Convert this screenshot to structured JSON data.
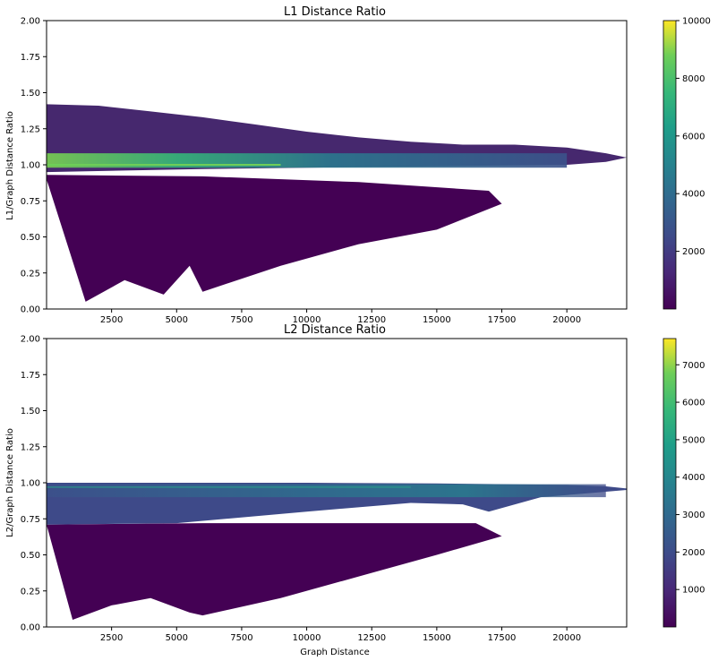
{
  "chart_data": [
    {
      "type": "heatmap",
      "title": "L1 Distance Ratio",
      "xlabel": "",
      "ylabel": "L1/Graph Distance Ratio",
      "xlim": [
        0,
        22300
      ],
      "ylim": [
        0,
        2
      ],
      "x_ticks": [
        2500,
        5000,
        7500,
        10000,
        12500,
        15000,
        17500,
        20000
      ],
      "x_tick_labels": [
        "2500",
        "5000",
        "7500",
        "10000",
        "12500",
        "15000",
        "17500",
        "20000"
      ],
      "y_ticks": [
        0,
        0.25,
        0.5,
        0.75,
        1.0,
        1.25,
        1.5,
        1.75,
        2.0
      ],
      "y_tick_labels": [
        "0.00",
        "0.25",
        "0.50",
        "0.75",
        "1.00",
        "1.25",
        "1.50",
        "1.75",
        "2.00"
      ],
      "colorbar": {
        "min": 0,
        "max": 10000,
        "ticks": [
          2000,
          4000,
          6000,
          8000,
          10000
        ],
        "tick_labels": [
          "2000",
          "4000",
          "6000",
          "8000",
          "10000"
        ]
      },
      "colormap": "viridis",
      "grid": false,
      "density_regions": {
        "upper_envelope": [
          [
            0,
            1.42
          ],
          [
            2000,
            1.41
          ],
          [
            4000,
            1.37
          ],
          [
            6000,
            1.33
          ],
          [
            8000,
            1.28
          ],
          [
            10000,
            1.23
          ],
          [
            12000,
            1.19
          ],
          [
            14000,
            1.16
          ],
          [
            16000,
            1.14
          ],
          [
            18000,
            1.14
          ],
          [
            20000,
            1.12
          ],
          [
            21500,
            1.08
          ],
          [
            22300,
            1.05
          ]
        ],
        "main_lower": [
          [
            0,
            0.95
          ],
          [
            3000,
            0.96
          ],
          [
            6000,
            0.97
          ],
          [
            10000,
            0.98
          ],
          [
            15000,
            0.99
          ],
          [
            20000,
            1.0
          ],
          [
            21500,
            1.02
          ],
          [
            22300,
            1.05
          ]
        ],
        "peak_line_y": 1.0,
        "lower_spray": [
          [
            0,
            0.9
          ],
          [
            1500,
            0.05
          ],
          [
            3000,
            0.2
          ],
          [
            4500,
            0.1
          ],
          [
            5500,
            0.3
          ],
          [
            6000,
            0.12
          ],
          [
            9000,
            0.3
          ],
          [
            12000,
            0.45
          ],
          [
            15000,
            0.55
          ],
          [
            17500,
            0.73
          ],
          [
            17000,
            0.82
          ],
          [
            12000,
            0.88
          ],
          [
            6000,
            0.92
          ],
          [
            0,
            0.93
          ]
        ]
      }
    },
    {
      "type": "heatmap",
      "title": "L2 Distance Ratio",
      "xlabel": "Graph Distance",
      "ylabel": "L2/Graph Distance Ratio",
      "xlim": [
        0,
        22300
      ],
      "ylim": [
        0,
        2
      ],
      "x_ticks": [
        2500,
        5000,
        7500,
        10000,
        12500,
        15000,
        17500,
        20000
      ],
      "x_tick_labels": [
        "2500",
        "5000",
        "7500",
        "10000",
        "12500",
        "15000",
        "17500",
        "20000"
      ],
      "y_ticks": [
        0,
        0.25,
        0.5,
        0.75,
        1.0,
        1.25,
        1.5,
        1.75,
        2.0
      ],
      "y_tick_labels": [
        "0.00",
        "0.25",
        "0.50",
        "0.75",
        "1.00",
        "1.25",
        "1.50",
        "1.75",
        "2.00"
      ],
      "colorbar": {
        "min": 0,
        "max": 7700,
        "ticks": [
          1000,
          2000,
          3000,
          4000,
          5000,
          6000,
          7000
        ],
        "tick_labels": [
          "1000",
          "2000",
          "3000",
          "4000",
          "5000",
          "6000",
          "7000"
        ]
      },
      "colormap": "viridis",
      "grid": false,
      "density_regions": {
        "upper_envelope": [
          [
            0,
            1.0
          ],
          [
            10000,
            1.0
          ],
          [
            15000,
            0.995
          ],
          [
            20000,
            0.985
          ],
          [
            21500,
            0.975
          ],
          [
            22300,
            0.96
          ]
        ],
        "main_lower": [
          [
            0,
            0.71
          ],
          [
            5000,
            0.72
          ],
          [
            10000,
            0.8
          ],
          [
            14000,
            0.86
          ],
          [
            16000,
            0.85
          ],
          [
            17000,
            0.8
          ],
          [
            19000,
            0.9
          ],
          [
            21000,
            0.93
          ],
          [
            22300,
            0.95
          ]
        ],
        "peak_line_y": 0.97,
        "lower_spray": [
          [
            0,
            0.71
          ],
          [
            1000,
            0.05
          ],
          [
            2500,
            0.15
          ],
          [
            4000,
            0.2
          ],
          [
            5500,
            0.1
          ],
          [
            6000,
            0.08
          ],
          [
            9000,
            0.2
          ],
          [
            12000,
            0.35
          ],
          [
            15000,
            0.5
          ],
          [
            17500,
            0.63
          ],
          [
            16500,
            0.72
          ],
          [
            12000,
            0.72
          ],
          [
            6000,
            0.72
          ],
          [
            0,
            0.71
          ]
        ]
      }
    }
  ]
}
